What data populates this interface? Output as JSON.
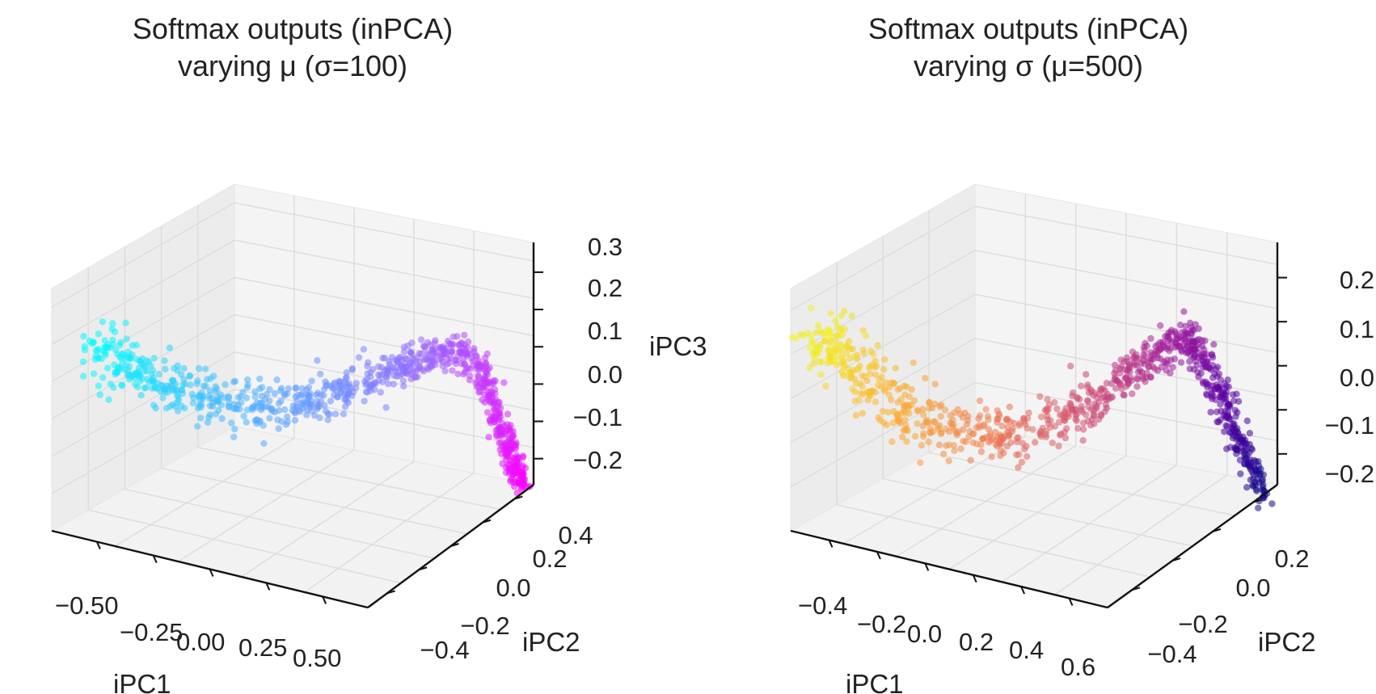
{
  "chart_data": [
    {
      "type": "scatter3d",
      "title": [
        "Softmax outputs (inPCA)",
        "varying μ (σ=100)"
      ],
      "xlabel": "iPC1",
      "ylabel": "iPC2",
      "zlabel": "iPC3",
      "x_ticks": [
        "−0.50",
        "−0.25",
        "0.00",
        "0.25",
        "0.50"
      ],
      "y_ticks": [
        "−0.4",
        "−0.2",
        "0.0",
        "0.2",
        "0.4"
      ],
      "z_ticks": [
        "−0.2",
        "−0.1",
        "0.0",
        "0.1",
        "0.2",
        "0.3"
      ],
      "xlim": [
        -0.6,
        0.65
      ],
      "ylim": [
        -0.45,
        0.45
      ],
      "zlim": [
        -0.25,
        0.32
      ],
      "colormap": "cool",
      "color_stops": [
        "#00ffff",
        "#ff00ff"
      ],
      "grid": true,
      "series_path": [
        {
          "x": -0.58,
          "y": 0.25,
          "z": 0.12
        },
        {
          "x": -0.5,
          "y": 0.22,
          "z": 0.1
        },
        {
          "x": -0.4,
          "y": 0.18,
          "z": 0.06
        },
        {
          "x": -0.28,
          "y": 0.12,
          "z": 0.02
        },
        {
          "x": -0.15,
          "y": 0.05,
          "z": 0.0
        },
        {
          "x": 0.0,
          "y": -0.02,
          "z": 0.01
        },
        {
          "x": 0.15,
          "y": -0.08,
          "z": 0.05
        },
        {
          "x": 0.3,
          "y": -0.12,
          "z": 0.1
        },
        {
          "x": 0.42,
          "y": -0.15,
          "z": 0.14
        },
        {
          "x": 0.5,
          "y": -0.2,
          "z": 0.16
        },
        {
          "x": 0.52,
          "y": -0.28,
          "z": 0.08
        },
        {
          "x": 0.53,
          "y": -0.35,
          "z": -0.05
        },
        {
          "x": 0.54,
          "y": -0.4,
          "z": -0.15
        },
        {
          "x": 0.55,
          "y": -0.44,
          "z": -0.22
        }
      ]
    },
    {
      "type": "scatter3d",
      "title": [
        "Softmax outputs (inPCA)",
        "varying σ (μ=500)"
      ],
      "xlabel": "iPC1",
      "ylabel": "iPC2",
      "zlabel": "",
      "x_ticks": [
        "−0.4",
        "−0.2",
        "0.0",
        "0.2",
        "0.4",
        "0.6"
      ],
      "y_ticks": [
        "−0.4",
        "−0.2",
        "0.0",
        "0.2"
      ],
      "z_ticks": [
        "−0.2",
        "−0.1",
        "0.0",
        "0.1",
        "0.2"
      ],
      "xlim": [
        -0.5,
        0.7
      ],
      "ylim": [
        -0.45,
        0.35
      ],
      "zlim": [
        -0.22,
        0.27
      ],
      "colormap": "plasma",
      "color_stops": [
        "#f0f921",
        "#fdb42f",
        "#ed7953",
        "#cc4778",
        "#9c179e",
        "#5c01a6",
        "#0d0887"
      ],
      "grid": true,
      "series_path": [
        {
          "x": -0.48,
          "y": 0.28,
          "z": 0.16
        },
        {
          "x": -0.4,
          "y": 0.25,
          "z": 0.12
        },
        {
          "x": -0.3,
          "y": 0.2,
          "z": 0.05
        },
        {
          "x": -0.18,
          "y": 0.12,
          "z": -0.02
        },
        {
          "x": -0.05,
          "y": 0.05,
          "z": -0.05
        },
        {
          "x": 0.08,
          "y": 0.0,
          "z": -0.04
        },
        {
          "x": 0.22,
          "y": -0.05,
          "z": 0.0
        },
        {
          "x": 0.35,
          "y": -0.1,
          "z": 0.07
        },
        {
          "x": 0.45,
          "y": -0.14,
          "z": 0.13
        },
        {
          "x": 0.55,
          "y": -0.17,
          "z": 0.17
        },
        {
          "x": 0.58,
          "y": -0.22,
          "z": 0.1
        },
        {
          "x": 0.6,
          "y": -0.28,
          "z": 0.0
        },
        {
          "x": 0.62,
          "y": -0.34,
          "z": -0.1
        },
        {
          "x": 0.64,
          "y": -0.4,
          "z": -0.2
        }
      ]
    }
  ]
}
